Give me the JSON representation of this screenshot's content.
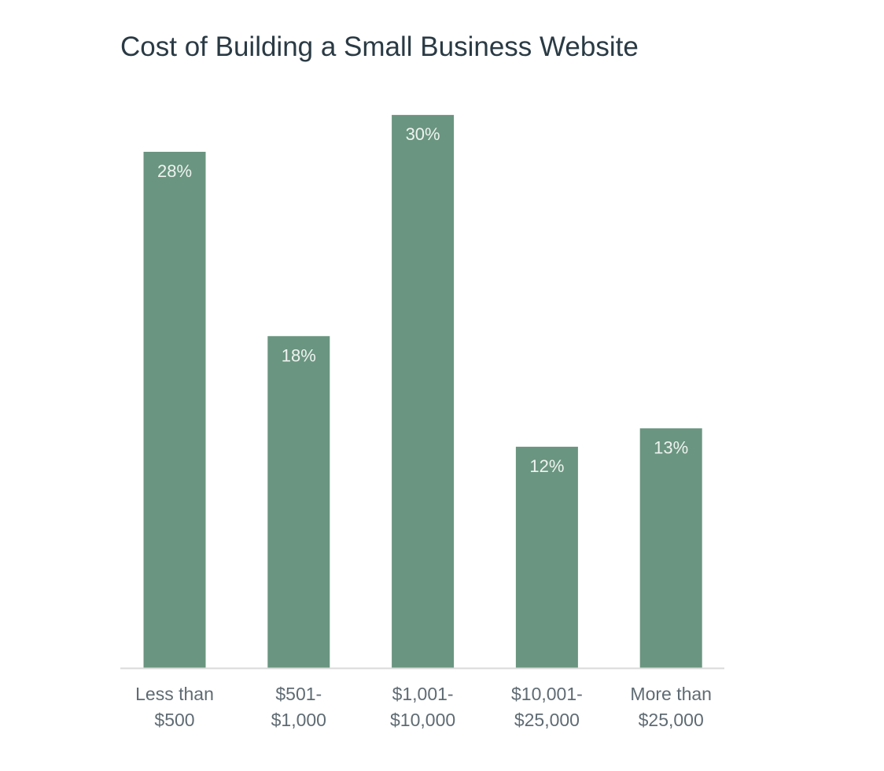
{
  "chart_data": {
    "type": "bar",
    "title": "Cost of Building a Small Business Website",
    "categories": [
      [
        "Less than",
        "$500"
      ],
      [
        "$501-",
        "$1,000"
      ],
      [
        "$1,001-",
        "$10,000"
      ],
      [
        "$10,001-",
        "$25,000"
      ],
      [
        "More than",
        "$25,000"
      ]
    ],
    "values": [
      28,
      18,
      30,
      12,
      13
    ],
    "value_labels": [
      "28%",
      "18%",
      "30%",
      "12%",
      "13%"
    ],
    "ylim": [
      0,
      30
    ],
    "grid": false,
    "bar_color": "#6a9580",
    "baseline_color": "#d9d9d9"
  }
}
